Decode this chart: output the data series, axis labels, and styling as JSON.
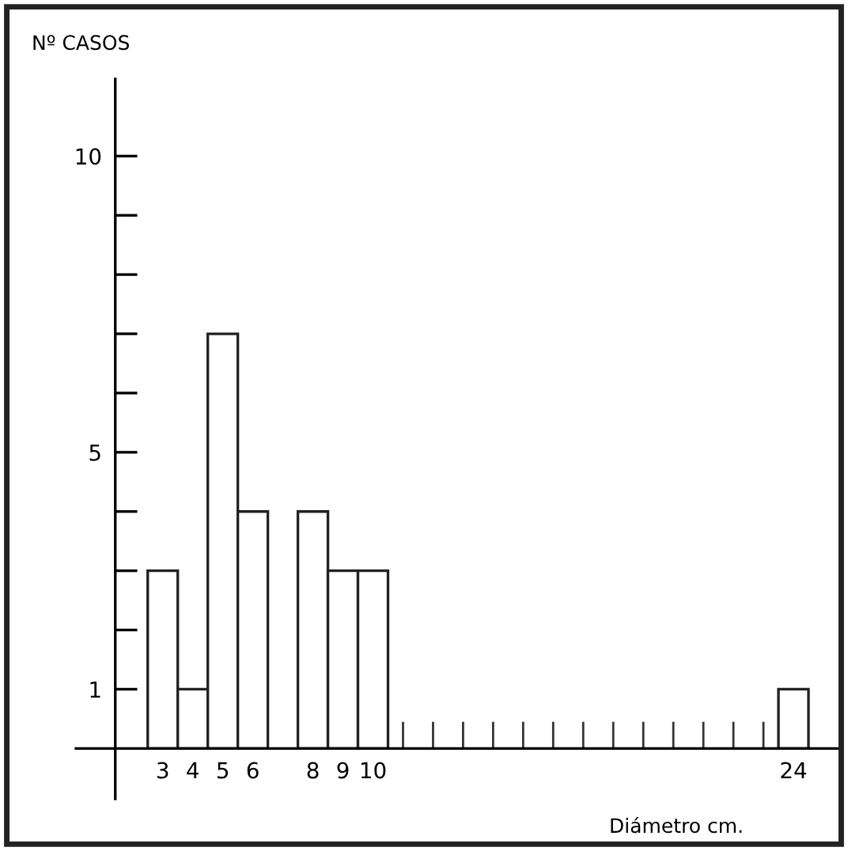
{
  "chart_data": {
    "type": "bar",
    "ylabel": "Nº CASOS",
    "xlabel": "Diámetro cm.",
    "categories": [
      "3",
      "4",
      "5",
      "6",
      null,
      "8",
      "9",
      "10",
      null,
      null,
      null,
      null,
      null,
      null,
      null,
      null,
      null,
      null,
      null,
      null,
      null,
      "24"
    ],
    "values": [
      3,
      1,
      7,
      4,
      null,
      4,
      3,
      3,
      null,
      null,
      null,
      null,
      null,
      null,
      null,
      null,
      null,
      null,
      null,
      null,
      null,
      1
    ],
    "color": "#ffffff",
    "ylim": [
      -0.85,
      11.3
    ],
    "yticks": [
      {
        "value": 1,
        "label": "1"
      },
      {
        "value": 2,
        "label": null
      },
      {
        "value": 3,
        "label": null
      },
      {
        "value": 4,
        "label": null
      },
      {
        "value": 5,
        "label": "5"
      },
      {
        "value": 6,
        "label": null
      },
      {
        "value": 7,
        "label": null
      },
      {
        "value": 8,
        "label": null
      },
      {
        "value": 9,
        "label": null
      },
      {
        "value": 10,
        "label": "10"
      }
    ],
    "grid": false,
    "legend": false
  }
}
